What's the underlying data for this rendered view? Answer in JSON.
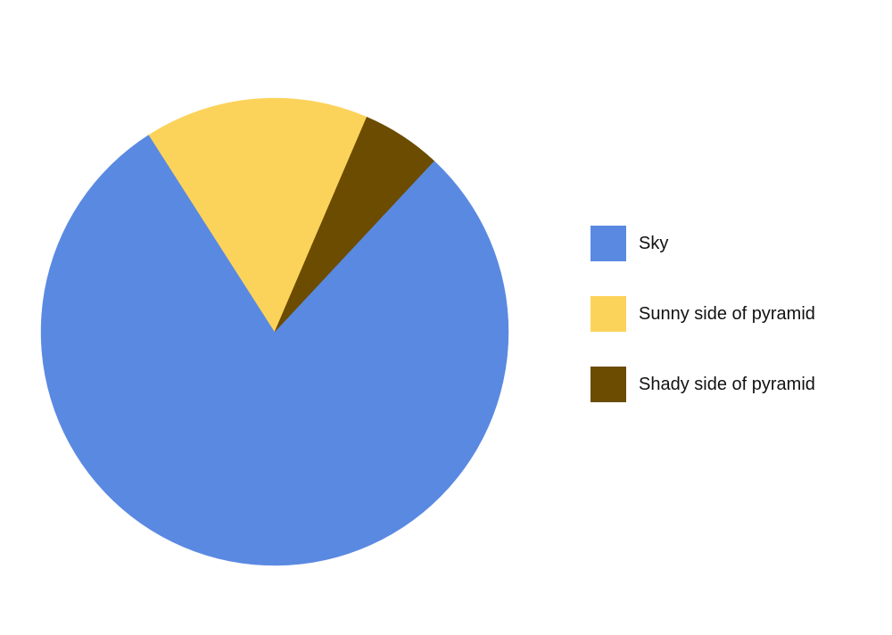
{
  "chart_data": {
    "type": "pie",
    "start_angle_deg": 43,
    "direction": "clockwise",
    "slices": [
      {
        "label": "Sky",
        "value": 0.79,
        "color": "#5a89e2"
      },
      {
        "label": "Sunny side of pyramid",
        "value": 0.155,
        "color": "#fcd35a"
      },
      {
        "label": "Shady side of pyramid",
        "value": 0.055,
        "color": "#6b4c00"
      }
    ],
    "legend_position": "right"
  }
}
